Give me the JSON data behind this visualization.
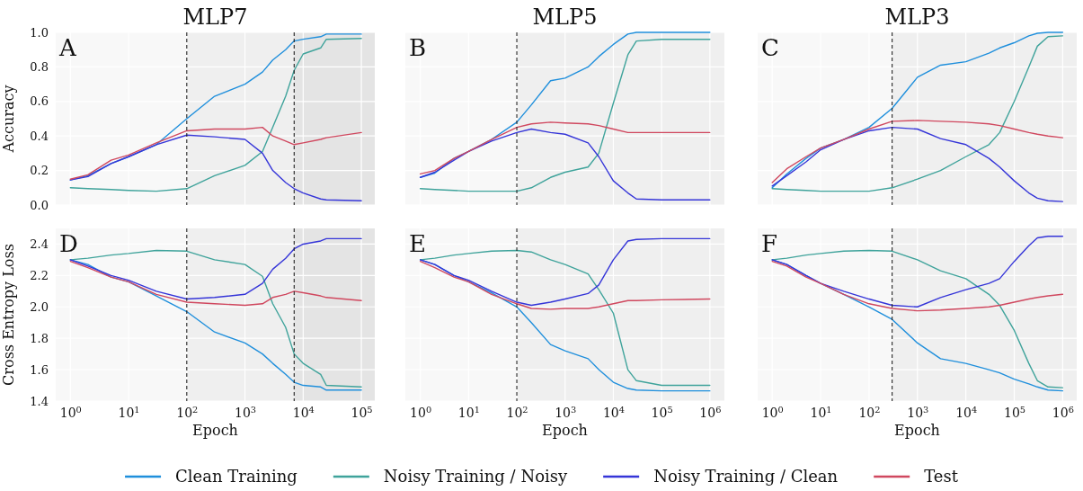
{
  "chart_data": [
    {
      "type": "line",
      "title": "MLP7",
      "ylabel": "Accuracy",
      "annotations": [
        "A"
      ],
      "tick_labels": "y",
      "grid": true,
      "legend": "bottom",
      "x": [
        1,
        2,
        5,
        10,
        30,
        100,
        300,
        1000,
        2000,
        3000,
        5000,
        7000,
        10000,
        20000,
        25000,
        100000
      ],
      "xlim": [
        0.56,
        170000
      ],
      "log": "x",
      "xticks": [
        1,
        10,
        100,
        1000,
        10000,
        100000
      ],
      "ylim": [
        0,
        1
      ],
      "yticks": [
        {
          "value": 0,
          "label": "0.0"
        },
        0.2,
        0.4,
        0.6,
        0.8,
        {
          "value": 1,
          "label": "1.0"
        }
      ],
      "ref_lines": [
        {
          "axis": "x",
          "value": 100,
          "color": "#222222",
          "line_style": "dashed"
        },
        {
          "axis": "x",
          "value": 7000,
          "color": "#222222",
          "line_style": "dashed"
        }
      ],
      "bands": [
        {
          "axis": "x",
          "from": 100,
          "to": 7000,
          "color": "#efefef"
        },
        {
          "axis": "x",
          "from": 7000,
          "to": 170000,
          "color": "#e4e4e4"
        }
      ],
      "series": [
        {
          "name": "Clean Training",
          "color": "#1f8fdc",
          "values": [
            0.145,
            0.17,
            0.24,
            0.28,
            0.35,
            0.5,
            0.63,
            0.7,
            0.77,
            0.84,
            0.9,
            0.95,
            0.96,
            0.975,
            0.99,
            0.99
          ]
        },
        {
          "name": "Noisy Training / Noisy",
          "color": "#3fa39b",
          "values": [
            0.1,
            0.095,
            0.09,
            0.085,
            0.08,
            0.095,
            0.17,
            0.23,
            0.31,
            0.45,
            0.63,
            0.78,
            0.875,
            0.91,
            0.96,
            0.965
          ]
        },
        {
          "name": "Noisy Training / Clean",
          "color": "#3535d8",
          "values": [
            0.145,
            0.165,
            0.24,
            0.28,
            0.35,
            0.405,
            0.395,
            0.38,
            0.3,
            0.2,
            0.13,
            0.095,
            0.07,
            0.035,
            0.03,
            0.025
          ]
        },
        {
          "name": "Test",
          "color": "#d0485f",
          "values": [
            0.15,
            0.175,
            0.26,
            0.29,
            0.36,
            0.43,
            0.44,
            0.44,
            0.45,
            0.4,
            0.37,
            0.35,
            0.36,
            0.38,
            0.39,
            0.42
          ]
        }
      ]
    },
    {
      "type": "line",
      "title": "MLP5",
      "annotations": [
        "B"
      ],
      "tick_labels": false,
      "grid": true,
      "x": [
        1,
        2,
        5,
        10,
        30,
        100,
        200,
        500,
        1000,
        3000,
        5000,
        10000,
        20000,
        30000,
        100000,
        1000000
      ],
      "xlim": [
        0.49,
        2000000
      ],
      "log": "x",
      "xticks": [
        1,
        10,
        100,
        1000,
        10000,
        100000,
        1000000
      ],
      "ylim": [
        0,
        1
      ],
      "yticks": [
        0,
        0.2,
        0.4,
        0.6,
        0.8,
        1
      ],
      "ref_lines": [
        {
          "axis": "x",
          "value": 100,
          "color": "#222222",
          "line_style": "dashed"
        }
      ],
      "bands": [
        {
          "axis": "x",
          "from": 100,
          "to": 2000000,
          "color": "#efefef"
        }
      ],
      "series": [
        {
          "color": "#1f8fdc",
          "values": [
            0.16,
            0.185,
            0.27,
            0.31,
            0.38,
            0.48,
            0.58,
            0.72,
            0.735,
            0.8,
            0.86,
            0.93,
            0.99,
            1.0,
            1.0,
            1.0
          ]
        },
        {
          "color": "#3fa39b",
          "values": [
            0.095,
            0.09,
            0.085,
            0.08,
            0.08,
            0.08,
            0.1,
            0.16,
            0.19,
            0.22,
            0.3,
            0.59,
            0.87,
            0.95,
            0.96,
            0.96
          ]
        },
        {
          "color": "#3535d8",
          "values": [
            0.16,
            0.19,
            0.26,
            0.31,
            0.37,
            0.42,
            0.44,
            0.42,
            0.41,
            0.36,
            0.28,
            0.14,
            0.07,
            0.035,
            0.03,
            0.03
          ]
        },
        {
          "color": "#d0485f",
          "values": [
            0.18,
            0.2,
            0.27,
            0.31,
            0.38,
            0.45,
            0.47,
            0.48,
            0.475,
            0.47,
            0.46,
            0.44,
            0.42,
            0.42,
            0.42,
            0.42
          ]
        }
      ]
    },
    {
      "type": "line",
      "title": "MLP3",
      "annotations": [
        "C"
      ],
      "tick_labels": false,
      "grid": true,
      "x": [
        1,
        2,
        5,
        10,
        30,
        100,
        300,
        1000,
        3000,
        10000,
        30000,
        50000,
        100000,
        200000,
        300000,
        500000,
        1000000
      ],
      "xlim": [
        0.5,
        1950000
      ],
      "log": "x",
      "xticks": [
        1,
        10,
        100,
        1000,
        10000,
        100000,
        1000000
      ],
      "ylim": [
        0,
        1
      ],
      "yticks": [
        0,
        0.2,
        0.4,
        0.6,
        0.8,
        1
      ],
      "ref_lines": [
        {
          "axis": "x",
          "value": 300,
          "color": "#222222",
          "line_style": "dashed"
        }
      ],
      "bands": [
        {
          "axis": "x",
          "from": 300,
          "to": 1950000,
          "color": "#efefef"
        }
      ],
      "series": [
        {
          "color": "#1f8fdc",
          "values": [
            0.1,
            0.18,
            0.27,
            0.33,
            0.38,
            0.45,
            0.56,
            0.74,
            0.81,
            0.83,
            0.88,
            0.91,
            0.94,
            0.98,
            0.995,
            1.0,
            1.0
          ]
        },
        {
          "color": "#3fa39b",
          "values": [
            0.095,
            0.09,
            0.085,
            0.08,
            0.08,
            0.08,
            0.1,
            0.15,
            0.2,
            0.28,
            0.35,
            0.42,
            0.6,
            0.8,
            0.92,
            0.975,
            0.98
          ]
        },
        {
          "color": "#3535d8",
          "values": [
            0.11,
            0.17,
            0.25,
            0.32,
            0.38,
            0.43,
            0.45,
            0.44,
            0.385,
            0.35,
            0.27,
            0.22,
            0.14,
            0.07,
            0.04,
            0.025,
            0.02
          ]
        },
        {
          "color": "#d0485f",
          "values": [
            0.13,
            0.21,
            0.28,
            0.33,
            0.38,
            0.44,
            0.485,
            0.49,
            0.485,
            0.48,
            0.47,
            0.46,
            0.44,
            0.42,
            0.41,
            0.4,
            0.39
          ]
        }
      ]
    },
    {
      "type": "line",
      "xlabel": "Epoch",
      "ylabel": "Cross Entropy Loss",
      "annotations": [
        "D"
      ],
      "grid": true,
      "x": [
        1,
        2,
        5,
        10,
        30,
        100,
        300,
        1000,
        2000,
        3000,
        5000,
        7000,
        10000,
        20000,
        25000,
        100000
      ],
      "xlim": [
        0.56,
        170000
      ],
      "log": "x",
      "xticks": [
        {
          "value": 1,
          "label": "10$^{0}$"
        },
        {
          "value": 10,
          "label": "10$^{1}$"
        },
        {
          "value": 100,
          "label": "10$^{2}$"
        },
        {
          "value": 1000,
          "label": "10$^{3}$"
        },
        {
          "value": 10000,
          "label": "10$^{4}$"
        },
        {
          "value": 100000,
          "label": "10$^{5}$"
        }
      ],
      "ylim": [
        1.4,
        2.5
      ],
      "yticks": [
        1.4,
        1.6,
        1.8,
        {
          "value": 2,
          "label": "2.0"
        },
        2.2,
        2.4
      ],
      "ref_lines": [
        {
          "axis": "x",
          "value": 100,
          "color": "#222222",
          "line_style": "dashed"
        },
        {
          "axis": "x",
          "value": 7000,
          "color": "#222222",
          "line_style": "dashed"
        }
      ],
      "bands": [
        {
          "axis": "x",
          "from": 100,
          "to": 7000,
          "color": "#efefef"
        },
        {
          "axis": "x",
          "from": 7000,
          "to": 170000,
          "color": "#e4e4e4"
        }
      ],
      "series": [
        {
          "color": "#1f8fdc",
          "values": [
            2.3,
            2.27,
            2.19,
            2.16,
            2.07,
            1.97,
            1.84,
            1.77,
            1.7,
            1.64,
            1.57,
            1.52,
            1.5,
            1.49,
            1.47,
            1.47
          ]
        },
        {
          "color": "#3fa39b",
          "values": [
            2.3,
            2.31,
            2.33,
            2.34,
            2.36,
            2.355,
            2.3,
            2.27,
            2.195,
            2.02,
            1.87,
            1.7,
            1.64,
            1.57,
            1.5,
            1.49
          ]
        },
        {
          "color": "#3535d8",
          "values": [
            2.3,
            2.26,
            2.2,
            2.17,
            2.1,
            2.05,
            2.06,
            2.08,
            2.15,
            2.24,
            2.31,
            2.37,
            2.4,
            2.42,
            2.435,
            2.435
          ]
        },
        {
          "color": "#d0485f",
          "values": [
            2.29,
            2.25,
            2.19,
            2.16,
            2.08,
            2.03,
            2.02,
            2.01,
            2.02,
            2.06,
            2.08,
            2.1,
            2.09,
            2.07,
            2.06,
            2.04
          ]
        }
      ]
    },
    {
      "type": "line",
      "xlabel": "Epoch",
      "annotations": [
        "E"
      ],
      "tick_labels": "x",
      "grid": true,
      "x": [
        1,
        2,
        5,
        10,
        30,
        100,
        200,
        500,
        1000,
        3000,
        5000,
        10000,
        20000,
        30000,
        100000,
        1000000
      ],
      "xlim": [
        0.49,
        2000000
      ],
      "log": "x",
      "xticks": [
        {
          "value": 1,
          "label": "10$^{0}$"
        },
        {
          "value": 10,
          "label": "10$^{1}$"
        },
        {
          "value": 100,
          "label": "10$^{2}$"
        },
        {
          "value": 1000,
          "label": "10$^{3}$"
        },
        {
          "value": 10000,
          "label": "10$^{4}$"
        },
        {
          "value": 100000,
          "label": "10$^{5}$"
        },
        {
          "value": 1000000,
          "label": "10$^{6}$"
        }
      ],
      "ylim": [
        1.4,
        2.5
      ],
      "yticks": [
        1.4,
        1.6,
        1.8,
        2,
        2.2,
        2.4
      ],
      "ref_lines": [
        {
          "axis": "x",
          "value": 100,
          "color": "#222222",
          "line_style": "dashed"
        }
      ],
      "bands": [
        {
          "axis": "x",
          "from": 100,
          "to": 2000000,
          "color": "#efefef"
        }
      ],
      "series": [
        {
          "color": "#1f8fdc",
          "values": [
            2.3,
            2.27,
            2.2,
            2.16,
            2.09,
            2.0,
            1.9,
            1.76,
            1.72,
            1.67,
            1.6,
            1.52,
            1.48,
            1.47,
            1.465,
            1.465
          ]
        },
        {
          "color": "#3fa39b",
          "values": [
            2.3,
            2.31,
            2.33,
            2.34,
            2.355,
            2.36,
            2.35,
            2.3,
            2.27,
            2.21,
            2.11,
            1.96,
            1.6,
            1.53,
            1.5,
            1.5
          ]
        },
        {
          "color": "#3535d8",
          "values": [
            2.3,
            2.27,
            2.2,
            2.17,
            2.1,
            2.03,
            2.01,
            2.03,
            2.05,
            2.085,
            2.14,
            2.3,
            2.42,
            2.43,
            2.435,
            2.435
          ]
        },
        {
          "color": "#d0485f",
          "values": [
            2.29,
            2.25,
            2.19,
            2.16,
            2.08,
            2.02,
            1.99,
            1.985,
            1.99,
            1.99,
            2.0,
            2.02,
            2.04,
            2.04,
            2.045,
            2.05
          ]
        }
      ]
    },
    {
      "type": "line",
      "xlabel": "Epoch",
      "annotations": [
        "F"
      ],
      "tick_labels": "x",
      "grid": true,
      "x": [
        1,
        2,
        5,
        10,
        30,
        100,
        300,
        1000,
        3000,
        10000,
        30000,
        50000,
        100000,
        200000,
        300000,
        500000,
        1000000
      ],
      "xlim": [
        0.5,
        1950000
      ],
      "log": "x",
      "xticks": [
        {
          "value": 1,
          "label": "10$^{0}$"
        },
        {
          "value": 10,
          "label": "10$^{1}$"
        },
        {
          "value": 100,
          "label": "10$^{2}$"
        },
        {
          "value": 1000,
          "label": "10$^{3}$"
        },
        {
          "value": 10000,
          "label": "10$^{4}$"
        },
        {
          "value": 100000,
          "label": "10$^{5}$"
        },
        {
          "value": 1000000,
          "label": "10$^{6}$"
        }
      ],
      "ylim": [
        1.4,
        2.5
      ],
      "yticks": [
        1.4,
        1.6,
        1.8,
        2,
        2.2,
        2.4
      ],
      "ref_lines": [
        {
          "axis": "x",
          "value": 300,
          "color": "#222222",
          "line_style": "dashed"
        }
      ],
      "bands": [
        {
          "axis": "x",
          "from": 300,
          "to": 1950000,
          "color": "#efefef"
        }
      ],
      "series": [
        {
          "color": "#1f8fdc",
          "values": [
            2.3,
            2.27,
            2.2,
            2.15,
            2.08,
            2.0,
            1.92,
            1.77,
            1.67,
            1.64,
            1.6,
            1.58,
            1.54,
            1.51,
            1.49,
            1.47,
            1.465
          ]
        },
        {
          "color": "#3fa39b",
          "values": [
            2.3,
            2.31,
            2.33,
            2.34,
            2.355,
            2.36,
            2.355,
            2.3,
            2.23,
            2.18,
            2.08,
            2.01,
            1.85,
            1.64,
            1.53,
            1.49,
            1.485
          ]
        },
        {
          "color": "#3535d8",
          "values": [
            2.3,
            2.27,
            2.2,
            2.15,
            2.1,
            2.05,
            2.01,
            2.0,
            2.06,
            2.11,
            2.15,
            2.18,
            2.29,
            2.39,
            2.44,
            2.45,
            2.45
          ]
        },
        {
          "color": "#d0485f",
          "values": [
            2.29,
            2.26,
            2.19,
            2.15,
            2.08,
            2.02,
            1.99,
            1.975,
            1.98,
            1.99,
            2.0,
            2.01,
            2.03,
            2.05,
            2.06,
            2.07,
            2.08
          ]
        }
      ]
    }
  ]
}
